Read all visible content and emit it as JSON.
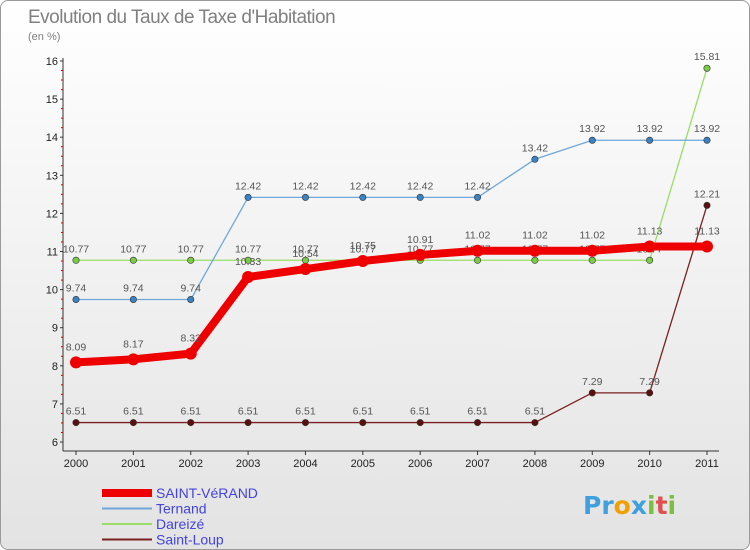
{
  "title": "Evolution du Taux de Taxe d'Habitation",
  "subtitle": "(en %)",
  "logo": {
    "text": "Proxiti",
    "letters": [
      "P",
      "r",
      "o",
      "x",
      "i",
      "t",
      "i"
    ],
    "colors": [
      "#3fa0e0",
      "#3fa0e0",
      "#f0a000",
      "#3fa0e0",
      "#7ac040",
      "#e05050",
      "#7ac040"
    ]
  },
  "chart_data": {
    "type": "line",
    "title": "Evolution du Taux de Taxe d'Habitation",
    "ylabel": "(en %)",
    "xlabel": "",
    "x": [
      "2000",
      "2001",
      "2002",
      "2003",
      "2004",
      "2005",
      "2006",
      "2007",
      "2008",
      "2009",
      "2010",
      "2011"
    ],
    "ylim": [
      6,
      16
    ],
    "yticks": [
      "6",
      "7",
      "8",
      "9",
      "10",
      "11",
      "12",
      "13",
      "14",
      "15",
      "16"
    ],
    "grid": false,
    "legend_position": "bottom-left",
    "series": [
      {
        "name": "Saint-Loup",
        "color": "#7a2020",
        "marker": "#5a1010",
        "values": [
          6.51,
          6.51,
          6.51,
          6.51,
          6.51,
          6.51,
          6.51,
          6.51,
          6.51,
          7.29,
          7.29,
          12.21
        ],
        "labels": [
          "6.51",
          "6.51",
          "6.51",
          "6.51",
          "6.51",
          "6.51",
          "6.51",
          "6.51",
          "6.51",
          "7.29",
          "7.29",
          "12.21"
        ]
      },
      {
        "name": "Dareizé",
        "color": "#99dd66",
        "marker": "#77cc44",
        "values": [
          10.77,
          10.77,
          10.77,
          10.77,
          10.77,
          10.77,
          10.77,
          10.77,
          10.77,
          10.77,
          10.77,
          15.81
        ],
        "labels": [
          "10.77",
          "10.77",
          "10.77",
          "10.77",
          "10.77",
          "10.77",
          "10.77",
          "10.77",
          "10.77",
          "10.77",
          "10.77",
          "15.81"
        ]
      },
      {
        "name": "Ternand",
        "color": "#6fa8d8",
        "marker": "#3a82c4",
        "values": [
          9.74,
          9.74,
          9.74,
          12.42,
          12.42,
          12.42,
          12.42,
          12.42,
          13.42,
          13.92,
          13.92,
          13.92
        ],
        "labels": [
          "9.74",
          "9.74",
          "9.74",
          "12.42",
          "12.42",
          "12.42",
          "12.42",
          "12.42",
          "13.42",
          "13.92",
          "13.92",
          "13.92"
        ]
      },
      {
        "name": "SAINT-VéRAND",
        "color": "#ee0000",
        "marker": "#ee0000",
        "values": [
          8.09,
          8.17,
          8.32,
          10.33,
          10.54,
          10.75,
          10.91,
          11.02,
          11.02,
          11.02,
          11.13,
          11.13
        ],
        "labels": [
          "8.09",
          "8.17",
          "8.32",
          "10.33",
          "10.54",
          "10.75",
          "10.91",
          "11.02",
          "11.02",
          "11.02",
          "11.13",
          "11.13"
        ]
      }
    ],
    "legend": [
      {
        "name": "SAINT-VéRAND",
        "color": "#ee0000",
        "text_color": "#4444dd"
      },
      {
        "name": "Ternand",
        "color": "#6fa8d8",
        "text_color": "#4444dd"
      },
      {
        "name": "Dareizé",
        "color": "#99dd66",
        "text_color": "#4444dd"
      },
      {
        "name": "Saint-Loup",
        "color": "#7a2020",
        "text_color": "#4444dd"
      }
    ]
  }
}
